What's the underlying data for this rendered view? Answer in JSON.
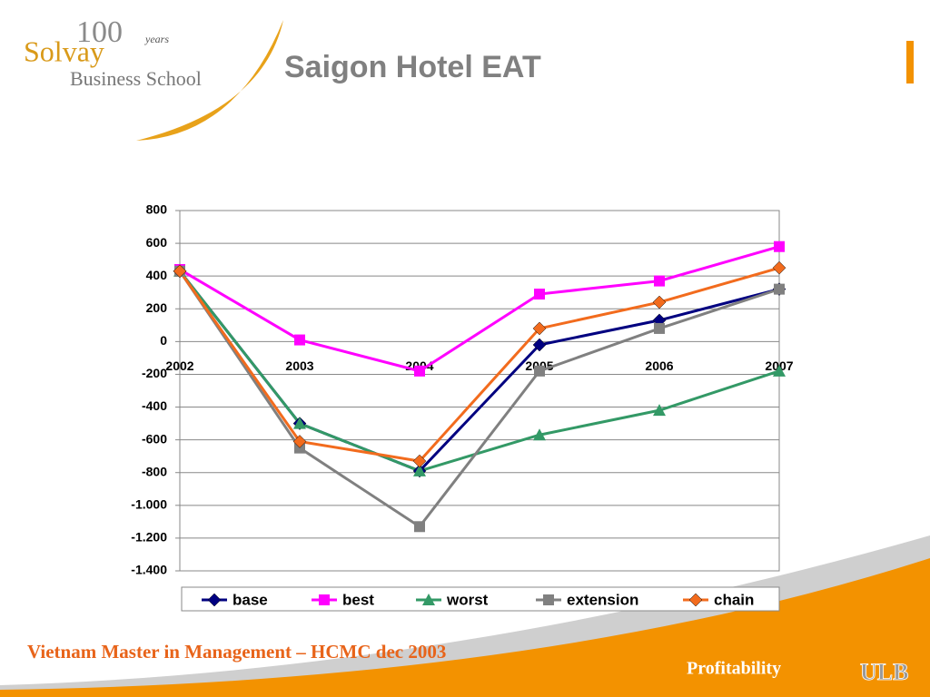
{
  "slide": {
    "logo": {
      "number": "100",
      "years": "years",
      "name": "Solvay",
      "school": "Business School"
    },
    "footer": "Vietnam Master in Management – HCMC dec 2003",
    "section": "Profitability",
    "brand": "ULB"
  },
  "chart_data": {
    "type": "line",
    "title": "Saigon Hotel EAT",
    "categories": [
      "2002",
      "2003",
      "2004",
      "2005",
      "2006",
      "2007"
    ],
    "series": [
      {
        "name": "base",
        "color": "#000080",
        "marker": "diamond",
        "values": [
          430,
          -500,
          -790,
          -20,
          130,
          320
        ]
      },
      {
        "name": "best",
        "color": "#ff00ff",
        "marker": "square",
        "values": [
          440,
          10,
          -180,
          290,
          370,
          580
        ]
      },
      {
        "name": "worst",
        "color": "#339966",
        "marker": "triangle",
        "values": [
          430,
          -500,
          -790,
          -570,
          -420,
          -180
        ]
      },
      {
        "name": "extension",
        "color": "#808080",
        "marker": "square",
        "values": [
          430,
          -650,
          -1130,
          -180,
          80,
          320
        ]
      },
      {
        "name": "chain",
        "color": "#f26b1d",
        "marker": "diamond",
        "values": [
          430,
          -610,
          -730,
          80,
          240,
          450
        ]
      }
    ],
    "ylim": [
      -1400,
      800
    ],
    "yticks": [
      800,
      600,
      400,
      200,
      0,
      -200,
      -400,
      -600,
      -800,
      {
        "value": -1000,
        "label": "-1.000"
      },
      {
        "value": -1200,
        "label": "-1.200"
      },
      {
        "value": -1400,
        "label": "-1.400"
      }
    ],
    "grid": true,
    "legend": "bottom"
  }
}
